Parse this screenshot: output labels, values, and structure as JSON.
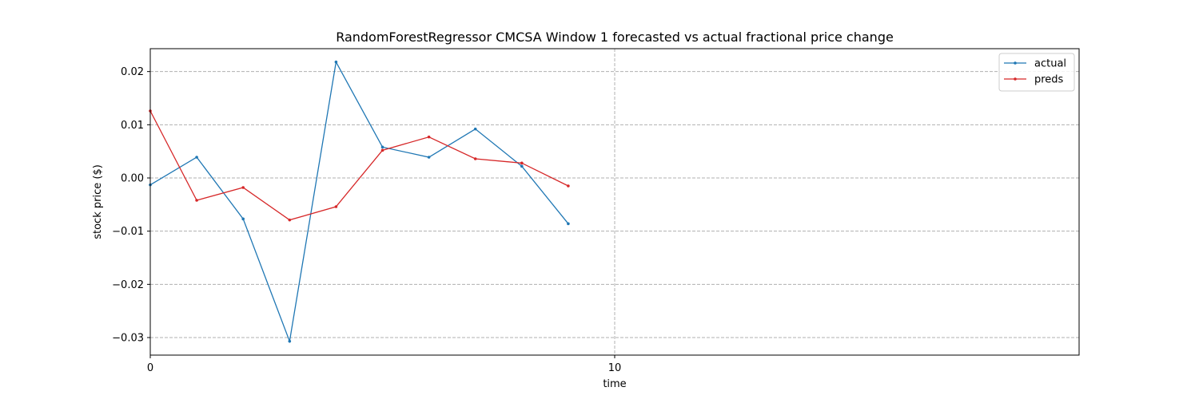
{
  "chart_data": {
    "type": "line",
    "title": "RandomForestRegressor CMCSA Window 1 forecasted vs actual fractional price change",
    "xlabel": "time",
    "ylabel": "stock price ($)",
    "xlim": [
      0,
      20
    ],
    "ylim": [
      -0.0333,
      0.0243
    ],
    "xticks": [
      0,
      10
    ],
    "xtick_labels": [
      "0",
      "10"
    ],
    "yticks": [
      -0.03,
      -0.02,
      -0.01,
      0.0,
      0.01,
      0.02
    ],
    "ytick_labels": [
      "−0.03",
      "−0.02",
      "−0.01",
      "0.00",
      "0.01",
      "0.02"
    ],
    "grid": true,
    "legend_position": "top-right",
    "x": [
      0,
      1,
      2,
      3,
      4,
      5,
      6,
      7,
      8,
      9
    ],
    "series": [
      {
        "name": "actual",
        "color": "#1f77b4",
        "values": [
          -0.0013,
          0.0039,
          -0.0077,
          -0.0307,
          0.0218,
          0.0058,
          0.0039,
          0.0092,
          0.0022,
          -0.0086
        ]
      },
      {
        "name": "preds",
        "color": "#d62728",
        "values": [
          0.0126,
          -0.0042,
          -0.0018,
          -0.0079,
          -0.0054,
          0.0052,
          0.0077,
          0.0036,
          0.0028,
          -0.0015
        ]
      }
    ]
  }
}
